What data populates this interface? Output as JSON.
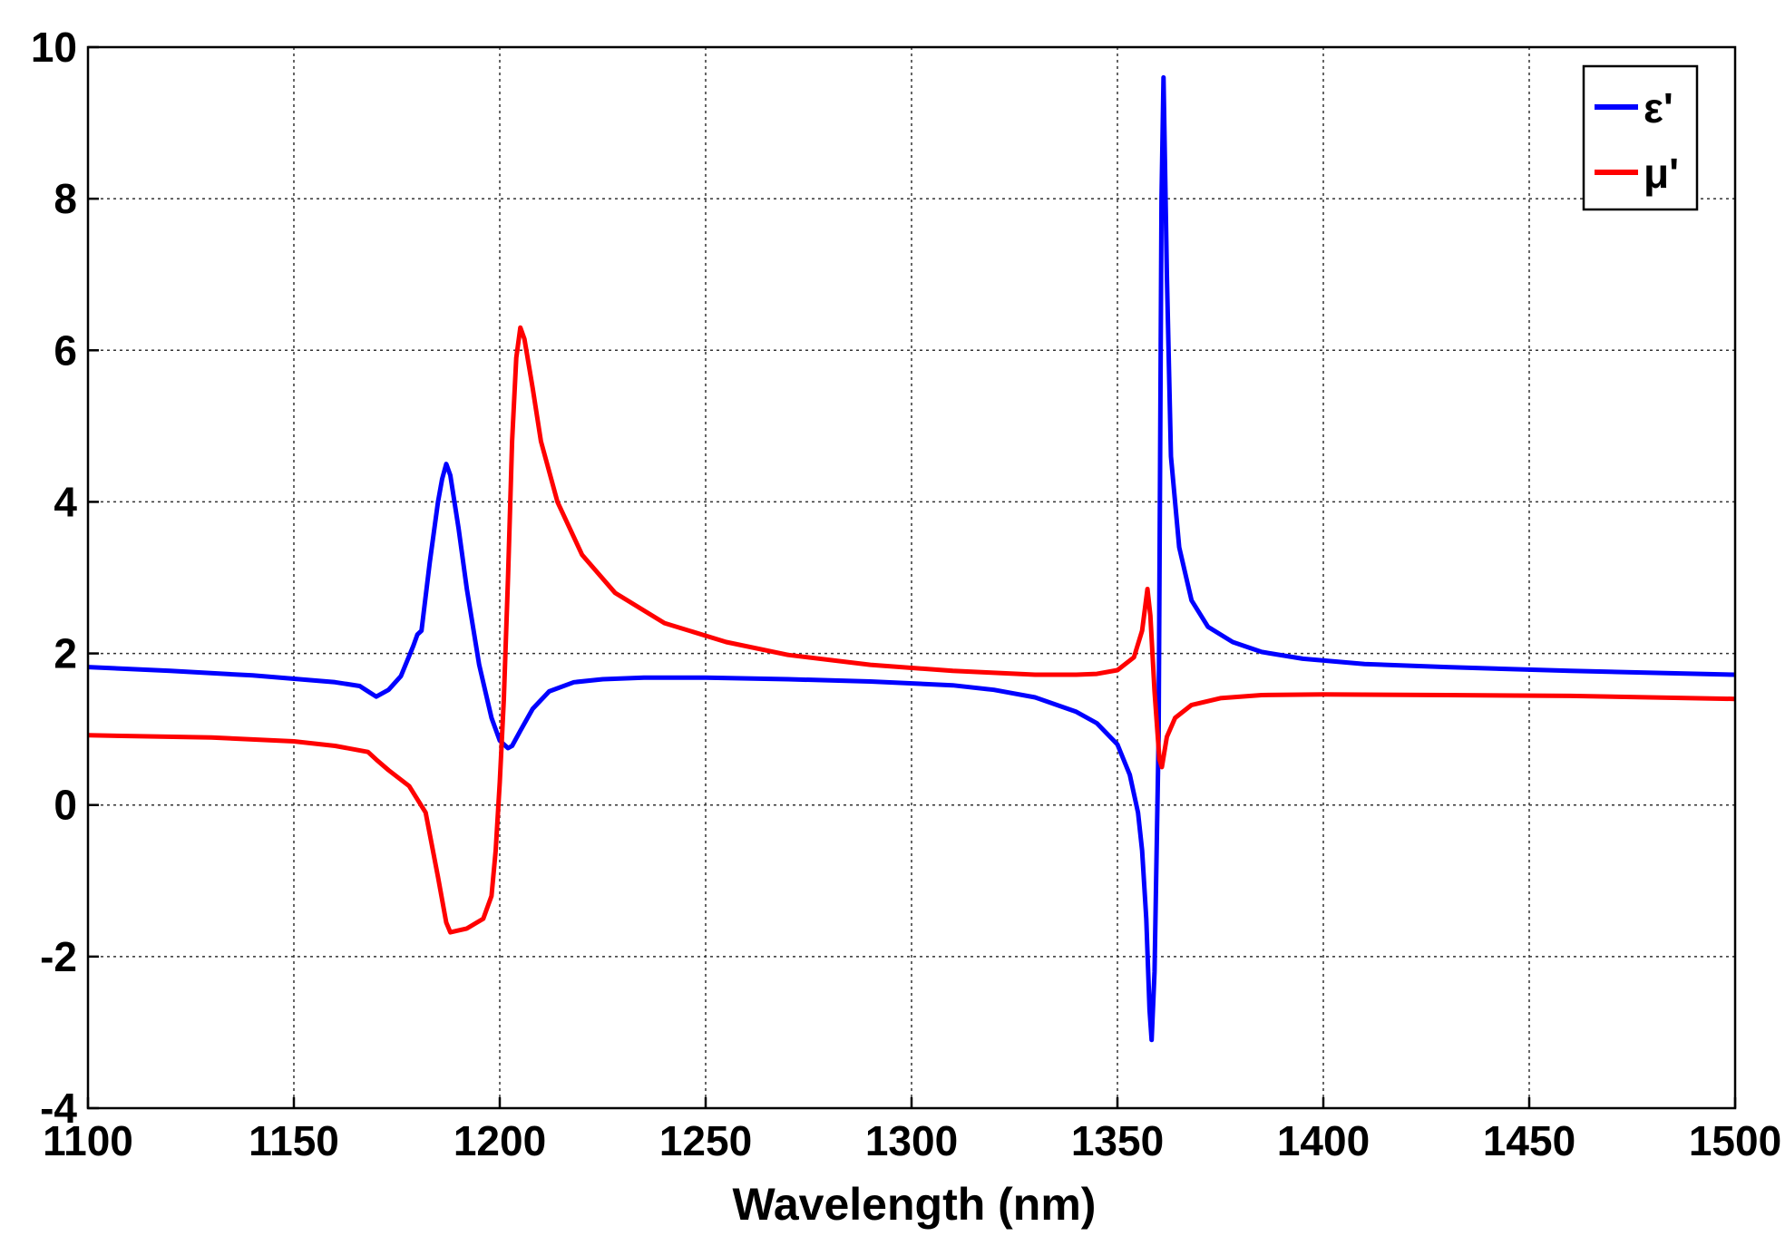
{
  "chart_data": {
    "type": "line",
    "title": "",
    "xlabel": "Wavelength (nm)",
    "ylabel": "",
    "xlim": [
      1100,
      1500
    ],
    "ylim": [
      -4,
      10
    ],
    "xticks": [
      "1100",
      "1150",
      "1200",
      "1250",
      "1300",
      "1350",
      "1400",
      "1450",
      "1500"
    ],
    "yticks": [
      "10",
      "8",
      "6",
      "4",
      "2",
      "0",
      "-2",
      "-4"
    ],
    "grid": true,
    "legend_position": "top-right",
    "series": [
      {
        "name": "ε'",
        "color": "#0000ff",
        "x": [
          1100,
          1120,
          1140,
          1160,
          1166,
          1168,
          1170,
          1173,
          1176,
          1179,
          1180,
          1181,
          1183,
          1185,
          1186,
          1187,
          1188,
          1190,
          1192,
          1195,
          1198,
          1200,
          1202,
          1203,
          1205,
          1208,
          1212,
          1218,
          1225,
          1235,
          1250,
          1270,
          1290,
          1310,
          1320,
          1330,
          1340,
          1345,
          1350,
          1353,
          1355,
          1356,
          1357,
          1357.8,
          1358.3,
          1359,
          1360,
          1360.7,
          1361.2,
          1362,
          1363,
          1365,
          1368,
          1372,
          1378,
          1385,
          1395,
          1410,
          1430,
          1460,
          1500
        ],
        "y": [
          1.82,
          1.77,
          1.71,
          1.62,
          1.57,
          1.5,
          1.43,
          1.52,
          1.7,
          2.1,
          2.25,
          2.3,
          3.2,
          4.0,
          4.3,
          4.5,
          4.35,
          3.65,
          2.85,
          1.85,
          1.15,
          0.85,
          0.75,
          0.78,
          0.98,
          1.27,
          1.5,
          1.62,
          1.66,
          1.68,
          1.68,
          1.66,
          1.63,
          1.58,
          1.52,
          1.42,
          1.23,
          1.08,
          0.8,
          0.4,
          -0.1,
          -0.6,
          -1.5,
          -2.7,
          -3.1,
          -2.2,
          0.9,
          8.0,
          9.6,
          7.0,
          4.6,
          3.4,
          2.7,
          2.35,
          2.15,
          2.02,
          1.93,
          1.86,
          1.82,
          1.77,
          1.72
        ]
      },
      {
        "name": "μ'",
        "color": "#ff0000",
        "x": [
          1100,
          1130,
          1150,
          1160,
          1168,
          1170,
          1173,
          1178,
          1182,
          1185,
          1187,
          1188,
          1192,
          1196,
          1198,
          1199,
          1200,
          1201,
          1202,
          1203,
          1204,
          1205,
          1206,
          1208,
          1210,
          1214,
          1220,
          1228,
          1240,
          1255,
          1270,
          1290,
          1310,
          1330,
          1340,
          1345,
          1350,
          1354,
          1356,
          1357.3,
          1358,
          1359,
          1360.2,
          1360.8,
          1362,
          1364,
          1368,
          1375,
          1385,
          1400,
          1430,
          1460,
          1500
        ],
        "y": [
          0.92,
          0.89,
          0.84,
          0.78,
          0.7,
          0.6,
          0.46,
          0.25,
          -0.1,
          -0.95,
          -1.55,
          -1.68,
          -1.63,
          -1.5,
          -1.2,
          -0.6,
          0.3,
          1.4,
          3.0,
          4.8,
          5.9,
          6.3,
          6.15,
          5.5,
          4.8,
          4.0,
          3.3,
          2.8,
          2.4,
          2.15,
          1.98,
          1.85,
          1.77,
          1.72,
          1.72,
          1.73,
          1.78,
          1.95,
          2.3,
          2.85,
          2.5,
          1.5,
          0.6,
          0.5,
          0.9,
          1.15,
          1.32,
          1.41,
          1.45,
          1.46,
          1.45,
          1.44,
          1.4
        ]
      }
    ]
  }
}
